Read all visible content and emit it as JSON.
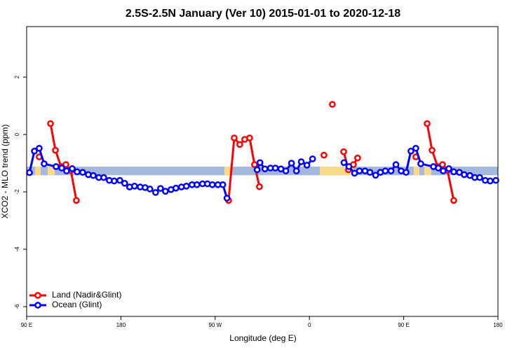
{
  "chart_data": {
    "type": "line",
    "title": "2.5S-2.5N January (Ver 10)   2015-01-01 to 2020-12-18",
    "x_label": "Longitude (deg E)",
    "y_label": "XCO2 - MLO trend (ppm)",
    "xlim": [
      90,
      540
    ],
    "ylim": [
      -6.34,
      3.76
    ],
    "xticks": [
      {
        "value": 90,
        "label": "90 E"
      },
      180,
      {
        "value": 270,
        "label": "90 W"
      },
      {
        "value": 360,
        "label": "0"
      },
      {
        "value": 450,
        "label": "90 E"
      },
      {
        "value": 540,
        "label": "180"
      }
    ],
    "yticks": [
      -6,
      -4,
      -2,
      0,
      2
    ],
    "legend": "bottom-left",
    "band": {
      "ylim": [
        -1.42,
        -1.12
      ],
      "color": "#a3b8dc",
      "highlights": [
        {
          "x": [
            98,
            103.4
          ],
          "color": "#f9d98a"
        },
        {
          "x": [
            110,
            116.8
          ],
          "color": "#f9d98a"
        },
        {
          "x": [
            278.8,
            285.5
          ],
          "color": "#f9d98a"
        },
        {
          "x": [
            369.9,
            402
          ],
          "color": "#f9d98a"
        },
        {
          "x": [
            459.6,
            465
          ],
          "color": "#f9d98a"
        },
        {
          "x": [
            469.7,
            476.4
          ],
          "color": "#f9d98a"
        }
      ]
    },
    "series": [
      {
        "name": "Land (Nadir&Glint)",
        "color": "#ff0000",
        "x": [
          102,
          null,
          112.8,
          117.5,
          122.8,
          127.5,
          132.2,
          137.5,
          null,
          282.8,
          288.2,
          293.5,
          298.2,
          302.9,
          307.6,
          312.3,
          null,
          373.9,
          null,
          381.9,
          null,
          392.7,
          397.3,
          402,
          406,
          null,
          461.6,
          null,
          472.4,
          477.1,
          482.4,
          487.1,
          491.8,
          497.8
        ],
        "values": [
          -0.78,
          null,
          0.38,
          -0.55,
          -1.12,
          -1.05,
          -1.25,
          -2.3,
          null,
          -2.3,
          -0.12,
          -0.35,
          -0.17,
          -0.12,
          -1.05,
          -1.82,
          null,
          -0.72,
          null,
          1.05,
          null,
          -0.6,
          -1.23,
          -1.05,
          -0.82,
          null,
          -0.78,
          null,
          0.38,
          -0.55,
          -1.12,
          -1.05,
          -1.25,
          -2.3
        ]
      },
      {
        "name": "Ocean (Glint)",
        "color": "#0000ff",
        "x": [
          92.7,
          97.4,
          102,
          106.7,
          118.1,
          123.5,
          128.1,
          133.5,
          138.2,
          143.5,
          148.9,
          153.6,
          158.9,
          163.6,
          168.9,
          173.6,
          179,
          183.6,
          188.3,
          193,
          198.4,
          203.1,
          207.7,
          213.1,
          217.8,
          222.5,
          227.8,
          232.5,
          237.8,
          242.5,
          247.9,
          252.6,
          257.9,
          262.6,
          267.3,
          272.6,
          277.3,
          281.3,
          null,
          310.1,
          312.8,
          317.5,
          322.8,
          327.5,
          332.8,
          337.5,
          342.9,
          347.6,
          352.2,
          357.6,
          363,
          null,
          393,
          397.7,
          403.1,
          407.8,
          413.1,
          417.8,
          423.2,
          427.8,
          432.5,
          437.9,
          442.6,
          447.6,
          452.3,
          456.9,
          461.6,
          466.3,
          478.4,
          483.1,
          487.7,
          493.1,
          497.8,
          503.2,
          507.8,
          513.2,
          517.9,
          522.6,
          527.9,
          532.6,
          538
        ],
        "values": [
          -1.33,
          -0.58,
          -0.48,
          -1.02,
          -1.12,
          -1.17,
          -1.27,
          -1.19,
          -1.3,
          -1.32,
          -1.4,
          -1.43,
          -1.5,
          -1.5,
          -1.6,
          -1.62,
          -1.6,
          -1.7,
          -1.83,
          -1.8,
          -1.83,
          -1.85,
          -1.9,
          -2.02,
          -1.88,
          -1.98,
          -1.92,
          -1.87,
          -1.83,
          -1.8,
          -1.75,
          -1.75,
          -1.72,
          -1.72,
          -1.75,
          -1.75,
          -1.75,
          -2.22,
          null,
          -1.23,
          -0.98,
          -1.2,
          -1.17,
          -1.17,
          -1.2,
          -1.27,
          -1.0,
          -1.27,
          -0.95,
          -1.07,
          -0.85,
          null,
          -0.98,
          -1.12,
          -1.35,
          -1.27,
          -1.27,
          -1.32,
          -1.42,
          -1.32,
          -1.27,
          -1.27,
          -1.05,
          -1.27,
          -1.32,
          -0.58,
          -0.48,
          -1.02,
          -1.12,
          -1.17,
          -1.27,
          -1.19,
          -1.3,
          -1.32,
          -1.4,
          -1.43,
          -1.5,
          -1.5,
          -1.6,
          -1.62,
          -1.6
        ]
      }
    ]
  }
}
